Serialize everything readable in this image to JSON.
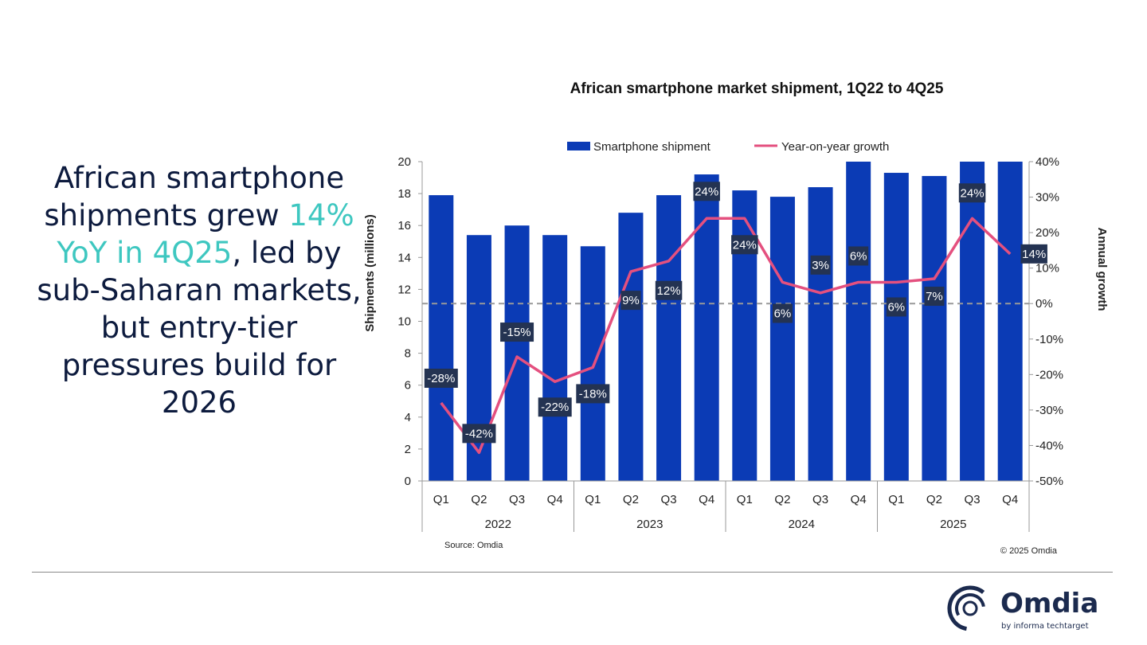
{
  "headline": {
    "part1": "African smartphone shipments grew ",
    "highlight": "14% YoY in 4Q25",
    "part2": ", led by sub-Saharan markets, but entry-tier pressures build for 2026"
  },
  "chart_data": {
    "type": "bar+line",
    "title": "African smartphone market shipment, 1Q22 to 4Q25",
    "quarters": [
      "Q1",
      "Q2",
      "Q3",
      "Q4",
      "Q1",
      "Q2",
      "Q3",
      "Q4",
      "Q1",
      "Q2",
      "Q3",
      "Q4",
      "Q1",
      "Q2",
      "Q3",
      "Q4"
    ],
    "years": [
      "2022",
      "2023",
      "2024",
      "2025"
    ],
    "series": [
      {
        "name": "Smartphone shipment",
        "axis": "left",
        "type": "bar",
        "color": "#0b3bb5",
        "values": [
          17.9,
          15.4,
          16.0,
          15.4,
          14.7,
          16.8,
          17.9,
          19.2,
          18.2,
          17.8,
          18.4,
          20.0,
          19.3,
          19.1,
          20.0,
          20.0
        ]
      },
      {
        "name": "Year-on-year growth",
        "axis": "right",
        "type": "line",
        "color": "#e4507f",
        "values": [
          -28,
          -42,
          -15,
          -22,
          -18,
          9,
          12,
          24,
          24,
          6,
          3,
          6,
          6,
          7,
          24,
          14
        ],
        "labels": [
          "-28%",
          "-42%",
          "-15%",
          "-22%",
          "-18%",
          "9%",
          "12%",
          "24%",
          "24%",
          "6%",
          "3%",
          "6%",
          "6%",
          "7%",
          "24%",
          "14%"
        ]
      }
    ],
    "ylabel": "Shipments (millions)",
    "ylim": [
      0,
      20
    ],
    "yticks": [
      "0",
      "2",
      "4",
      "6",
      "8",
      "10",
      "12",
      "14",
      "16",
      "18",
      "20"
    ],
    "y2label": "Annual growth",
    "y2lim": [
      -50,
      40
    ],
    "y2ticks": [
      "-50%",
      "-40%",
      "-30%",
      "-20%",
      "-10%",
      "0%",
      "10%",
      "20%",
      "30%",
      "40%"
    ],
    "zero_line": "dashed",
    "legend_position": "top",
    "source": "Source: Omdia",
    "copyright": "© 2025 Omdia"
  },
  "logo": {
    "name": "Omdia",
    "tagline": "by informa techtarget"
  }
}
